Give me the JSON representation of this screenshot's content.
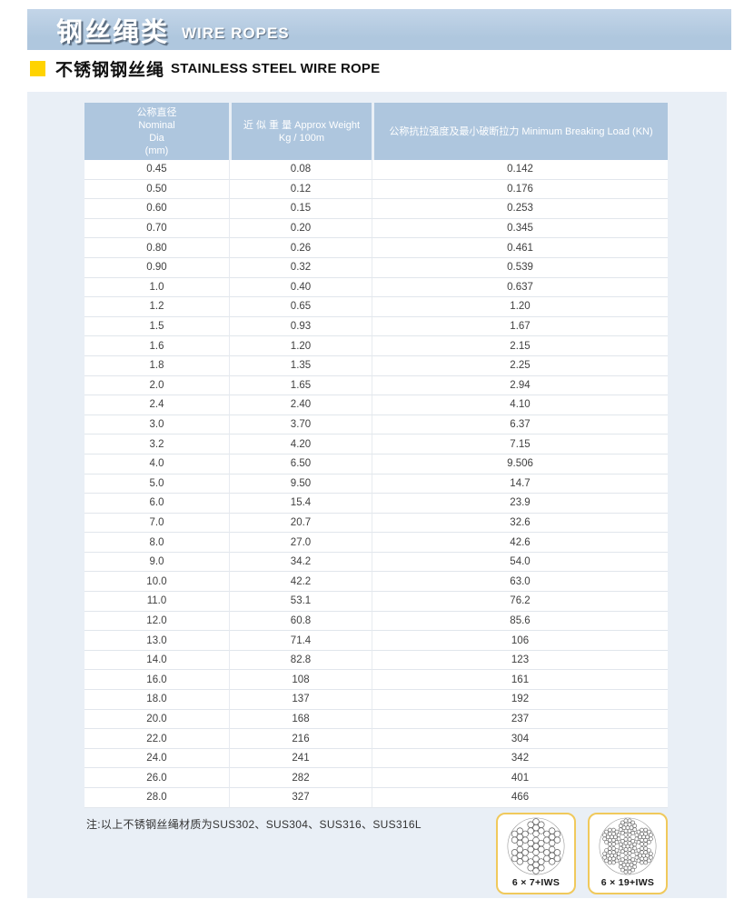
{
  "header": {
    "title_cn": "钢丝绳类",
    "title_en": "WIRE ROPES",
    "subtitle_cn": "不锈钢钢丝绳",
    "subtitle_en": "STAINLESS STEEL WIRE ROPE"
  },
  "colors": {
    "header_bar": "#afc7de",
    "header_bar_light": "#c3d5e8",
    "table_header": "#aec6de",
    "panel_bg": "#e9eff6",
    "accent_yellow": "#ffd300",
    "card_border": "#f0c95c"
  },
  "table": {
    "columns": [
      {
        "label": "公称直径\nNominal\nDia\n(mm)"
      },
      {
        "label": "近 似 重 量 Approx Weight\nKg / 100m"
      },
      {
        "label": "公称抗拉强度及最小破断拉力 Minimum Breaking Load (KN)"
      }
    ],
    "rows": [
      [
        "0.45",
        "0.08",
        "0.142"
      ],
      [
        "0.50",
        "0.12",
        "0.176"
      ],
      [
        "0.60",
        "0.15",
        "0.253"
      ],
      [
        "0.70",
        "0.20",
        "0.345"
      ],
      [
        "0.80",
        "0.26",
        "0.461"
      ],
      [
        "0.90",
        "0.32",
        "0.539"
      ],
      [
        "1.0",
        "0.40",
        "0.637"
      ],
      [
        "1.2",
        "0.65",
        "1.20"
      ],
      [
        "1.5",
        "0.93",
        "1.67"
      ],
      [
        "1.6",
        "1.20",
        "2.15"
      ],
      [
        "1.8",
        "1.35",
        "2.25"
      ],
      [
        "2.0",
        "1.65",
        "2.94"
      ],
      [
        "2.4",
        "2.40",
        "4.10"
      ],
      [
        "3.0",
        "3.70",
        "6.37"
      ],
      [
        "3.2",
        "4.20",
        "7.15"
      ],
      [
        "4.0",
        "6.50",
        "9.506"
      ],
      [
        "5.0",
        "9.50",
        "14.7"
      ],
      [
        "6.0",
        "15.4",
        "23.9"
      ],
      [
        "7.0",
        "20.7",
        "32.6"
      ],
      [
        "8.0",
        "27.0",
        "42.6"
      ],
      [
        "9.0",
        "34.2",
        "54.0"
      ],
      [
        "10.0",
        "42.2",
        "63.0"
      ],
      [
        "11.0",
        "53.1",
        "76.2"
      ],
      [
        "12.0",
        "60.8",
        "85.6"
      ],
      [
        "13.0",
        "71.4",
        "106"
      ],
      [
        "14.0",
        "82.8",
        "123"
      ],
      [
        "16.0",
        "108",
        "161"
      ],
      [
        "18.0",
        "137",
        "192"
      ],
      [
        "20.0",
        "168",
        "237"
      ],
      [
        "22.0",
        "216",
        "304"
      ],
      [
        "24.0",
        "241",
        "342"
      ],
      [
        "26.0",
        "282",
        "401"
      ],
      [
        "28.0",
        "327",
        "466"
      ]
    ]
  },
  "note": "注:以上不锈钢丝绳材质为SUS302、SUS304、SUS316、SUS316L",
  "diagrams": [
    {
      "label": "6 × 7+IWS",
      "strands": 7,
      "wires_per_strand": 7
    },
    {
      "label": "6 × 19+IWS",
      "strands": 7,
      "wires_per_strand": 19
    }
  ]
}
